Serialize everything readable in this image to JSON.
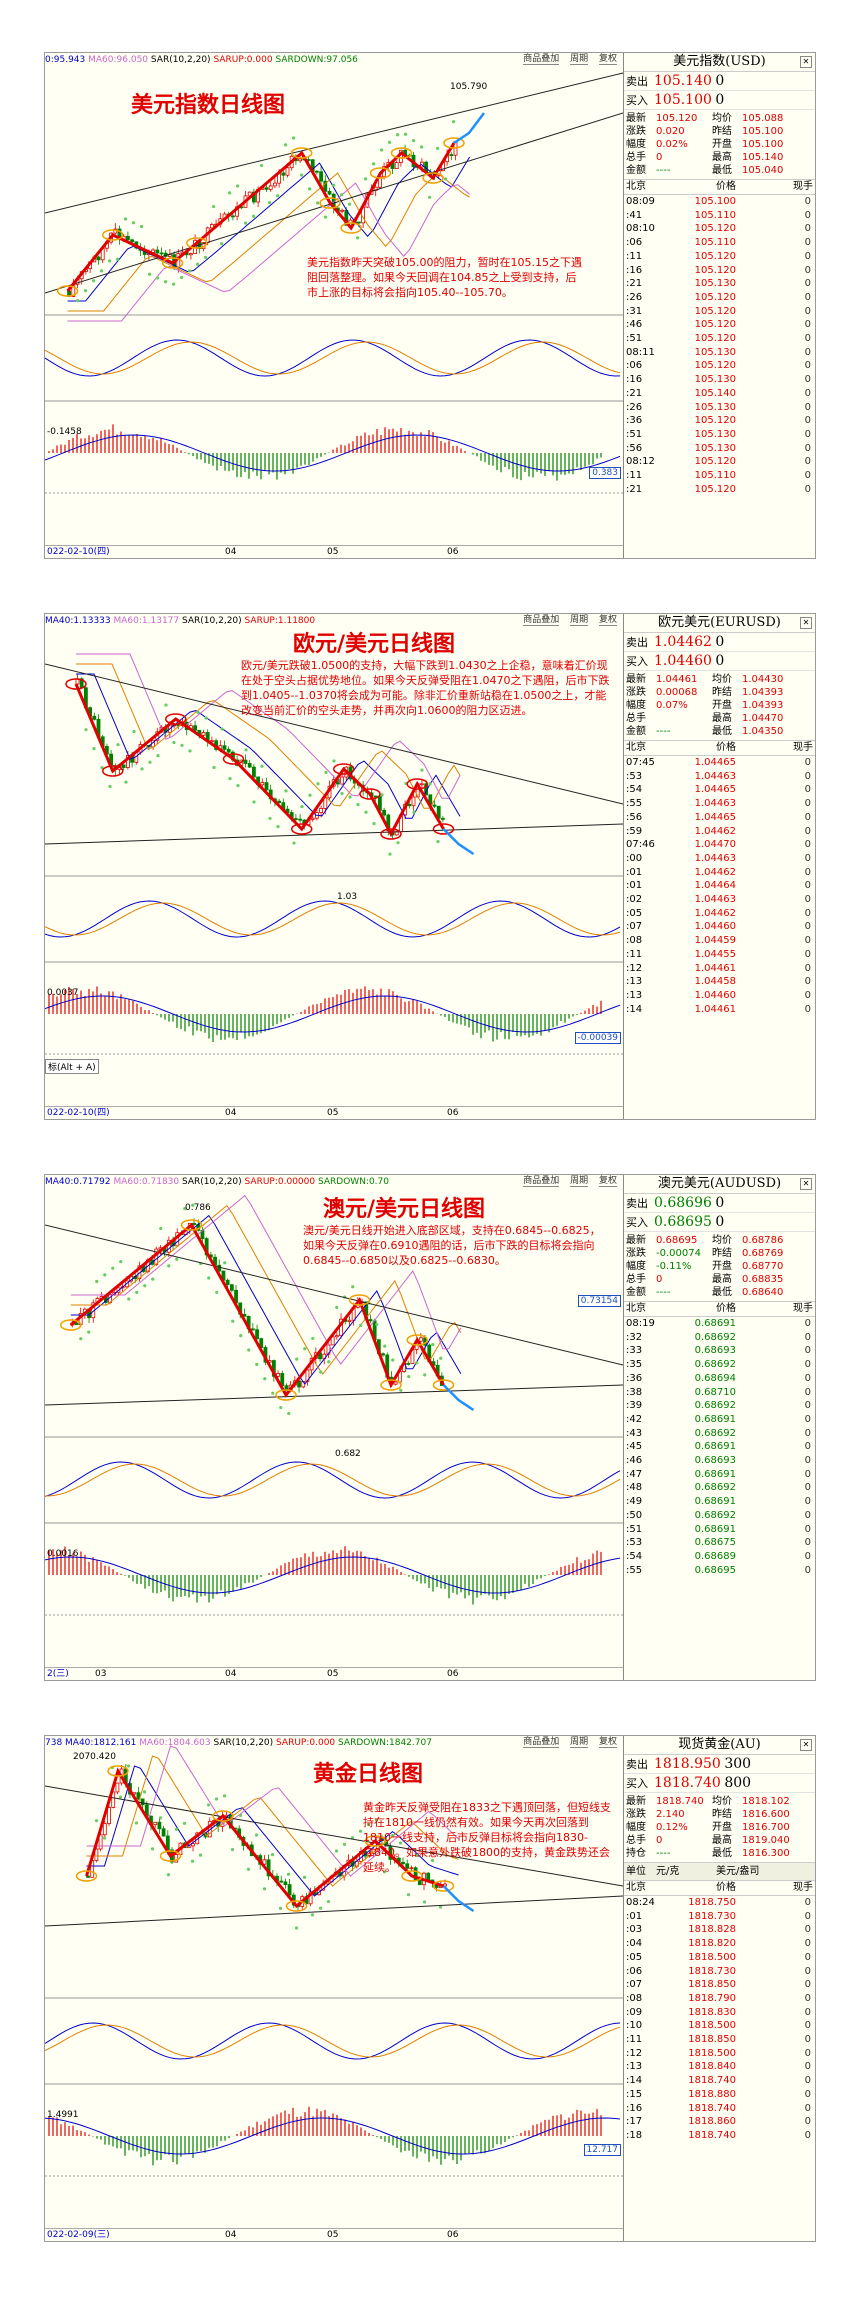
{
  "panels": [
    {
      "id": "usd",
      "chart_title": "美元指数日线图",
      "indicator_header": {
        "ma20": "0:95.943",
        "ma60": "MA60:96.050",
        "sar": "SAR(10,2,20)",
        "sarup": "SARUP:0.000",
        "sardown": "SARDOWN:97.056"
      },
      "toolbar": [
        "商品叠加",
        "周期",
        "复权"
      ],
      "note": "美元指数昨天突破105.00的阻力，暂时在105.15之下遇阻回落整理。如果今天回调在104.85之上受到支持，后市上涨的目标将会指向105.40--105.70。",
      "price_tag": "105.790",
      "macd_label": "-0.1458",
      "macd_value": "0.383",
      "date_start": "022-02-10(四)",
      "x_ticks": [
        "04",
        "05",
        "06"
      ],
      "quote": {
        "name": "美元指数(USD)",
        "sell_label": "卖出",
        "sell": "105.140",
        "sell_lot": "0",
        "buy_label": "买入",
        "buy": "105.100",
        "buy_lot": "0",
        "stats": [
          [
            "最新",
            "105.120",
            "均价",
            "105.088"
          ],
          [
            "涨跌",
            "0.020",
            "昨结",
            "105.100"
          ],
          [
            "幅度",
            "0.02%",
            "开盘",
            "105.100"
          ],
          [
            "总手",
            "0",
            "最高",
            "105.140"
          ],
          [
            "金额",
            "----",
            "最低",
            "105.040"
          ]
        ],
        "head": [
          "北京",
          "价格",
          "现手"
        ],
        "ticks": [
          [
            "08:09",
            "105.100",
            "0"
          ],
          [
            ":41",
            "105.110",
            "0"
          ],
          [
            "08:10",
            "105.120",
            "0"
          ],
          [
            ":06",
            "105.110",
            "0"
          ],
          [
            ":11",
            "105.120",
            "0"
          ],
          [
            ":16",
            "105.120",
            "0"
          ],
          [
            ":21",
            "105.130",
            "0"
          ],
          [
            ":26",
            "105.120",
            "0"
          ],
          [
            ":31",
            "105.120",
            "0"
          ],
          [
            ":46",
            "105.120",
            "0"
          ],
          [
            ":51",
            "105.120",
            "0"
          ],
          [
            "08:11",
            "105.130",
            "0"
          ],
          [
            ":06",
            "105.120",
            "0"
          ],
          [
            ":16",
            "105.130",
            "0"
          ],
          [
            ":21",
            "105.140",
            "0"
          ],
          [
            ":26",
            "105.130",
            "0"
          ],
          [
            ":36",
            "105.120",
            "0"
          ],
          [
            ":51",
            "105.130",
            "0"
          ],
          [
            ":56",
            "105.130",
            "0"
          ],
          [
            "08:12",
            "105.120",
            "0"
          ],
          [
            ":11",
            "105.110",
            "0"
          ],
          [
            ":21",
            "105.120",
            "0"
          ]
        ]
      }
    },
    {
      "id": "eur",
      "chart_title": "欧元/美元日线图",
      "indicator_header": {
        "ma20": "MA40:1.13333",
        "ma60": "MA60:1.13177",
        "sar": "SAR(10,2,20)",
        "sarup": "SARUP:1.11800",
        "sardown": ""
      },
      "toolbar": [
        "商品叠加",
        "周期",
        "复权"
      ],
      "note": "欧元/美元跌破1.0500的支持，大幅下跌到1.0430之上企稳，意味着汇价现在处于空头占据优势地位。如果今天反弹受阻在1.0470之下遇阻，后市下跌到1.0405--1.0370将会成为可能。除非汇价重新站稳在1.0500之上，才能改变当前汇价的空头走势，并再次向1.0600的阻力区迈进。",
      "price_tag": "1.03",
      "macd_label": "0.0037",
      "macd_value": "-0.00039",
      "extra_label": "标(Alt + A)",
      "date_start": "022-02-10(四)",
      "x_ticks": [
        "04",
        "05",
        "06"
      ],
      "quote": {
        "name": "欧元美元(EURUSD)",
        "sell_label": "卖出",
        "sell": "1.04462",
        "sell_lot": "0",
        "buy_label": "买入",
        "buy": "1.04460",
        "buy_lot": "0",
        "stats": [
          [
            "最新",
            "1.04461",
            "均价",
            "1.04430"
          ],
          [
            "涨跌",
            "0.00068",
            "昨结",
            "1.04393"
          ],
          [
            "幅度",
            "0.07%",
            "开盘",
            "1.04393"
          ],
          [
            "总手",
            "",
            "最高",
            "1.04470"
          ],
          [
            "金额",
            "----",
            "最低",
            "1.04350"
          ]
        ],
        "head": [
          "北京",
          "价格",
          "现手"
        ],
        "ticks": [
          [
            "07:45",
            "1.04465",
            "0"
          ],
          [
            ":53",
            "1.04463",
            "0"
          ],
          [
            ":54",
            "1.04465",
            "0"
          ],
          [
            ":55",
            "1.04463",
            "0"
          ],
          [
            ":56",
            "1.04465",
            "0"
          ],
          [
            ":59",
            "1.04462",
            "0"
          ],
          [
            "07:46",
            "1.04470",
            "0"
          ],
          [
            ":00",
            "1.04463",
            "0"
          ],
          [
            ":01",
            "1.04462",
            "0"
          ],
          [
            ":01",
            "1.04464",
            "0"
          ],
          [
            ":02",
            "1.04463",
            "0"
          ],
          [
            ":05",
            "1.04462",
            "0"
          ],
          [
            ":07",
            "1.04460",
            "0"
          ],
          [
            ":08",
            "1.04459",
            "0"
          ],
          [
            ":11",
            "1.04455",
            "0"
          ],
          [
            ":12",
            "1.04461",
            "0"
          ],
          [
            ":13",
            "1.04458",
            "0"
          ],
          [
            ":13",
            "1.04460",
            "0"
          ],
          [
            ":14",
            "1.04461",
            "0"
          ]
        ]
      }
    },
    {
      "id": "aud",
      "chart_title": "澳元/美元日线图",
      "indicator_header": {
        "ma20": "MA40:0.71792",
        "ma60": "MA60:0.71830",
        "sar": "SAR(10,2,20)",
        "sarup": "SARUP:0.00000",
        "sardown": "SARDOWN:0.70"
      },
      "toolbar": [
        "商品叠加",
        "周期",
        "复权"
      ],
      "note": "澳元/美元日线开始进入底部区域，支持在0.6845--0.6825，如果今天反弹在0.6910遇阻的话，后市下跌的目标将会指向0.6845--0.6850以及0.6825--0.6830。",
      "price_tag": "0.786",
      "price_tag2": "0.682",
      "right_value": "0.73154",
      "macd_label": "0.0016",
      "date_start": "2(三)",
      "x_ticks": [
        "03",
        "04",
        "05",
        "06"
      ],
      "quote": {
        "name": "澳元美元(AUDUSD)",
        "sell_label": "卖出",
        "sell": "0.68696",
        "sell_lot": "0",
        "buy_label": "买入",
        "buy": "0.68695",
        "buy_lot": "0",
        "stats": [
          [
            "最新",
            "0.68695",
            "均价",
            "0.68786"
          ],
          [
            "涨跌",
            "-0.00074",
            "昨结",
            "0.68769"
          ],
          [
            "幅度",
            "-0.11%",
            "开盘",
            "0.68770"
          ],
          [
            "总手",
            "0",
            "最高",
            "0.68835"
          ],
          [
            "金额",
            "----",
            "最低",
            "0.68640"
          ]
        ],
        "head": [
          "北京",
          "价格",
          "现手"
        ],
        "ticks": [
          [
            "08:19",
            "0.68691",
            "0"
          ],
          [
            ":32",
            "0.68692",
            "0"
          ],
          [
            ":33",
            "0.68693",
            "0"
          ],
          [
            ":35",
            "0.68692",
            "0"
          ],
          [
            ":36",
            "0.68694",
            "0"
          ],
          [
            ":38",
            "0.68710",
            "0"
          ],
          [
            ":39",
            "0.68692",
            "0"
          ],
          [
            ":42",
            "0.68691",
            "0"
          ],
          [
            ":43",
            "0.68692",
            "0"
          ],
          [
            ":45",
            "0.68691",
            "0"
          ],
          [
            ":46",
            "0.68693",
            "0"
          ],
          [
            ":47",
            "0.68691",
            "0"
          ],
          [
            ":48",
            "0.68692",
            "0"
          ],
          [
            ":49",
            "0.68691",
            "0"
          ],
          [
            ":50",
            "0.68692",
            "0"
          ],
          [
            ":51",
            "0.68691",
            "0"
          ],
          [
            ":53",
            "0.68675",
            "0"
          ],
          [
            ":54",
            "0.68689",
            "0"
          ],
          [
            ":55",
            "0.68695",
            "0"
          ]
        ]
      }
    },
    {
      "id": "gold",
      "chart_title": "黄金日线图",
      "indicator_header": {
        "ma20": "738 MA40:1812.161",
        "ma60": "MA60:1804.603",
        "sar": "SAR(10,2,20)",
        "sarup": "SARUP:0.000",
        "sardown": "SARDOWN:1842.707"
      },
      "toolbar": [
        "商品叠加",
        "周期",
        "复权"
      ],
      "note": "黄金昨天反弹受阻在1833之下遇顶回落，但短线支持在1810一线仍然有效。如果今天再次回落到1810一线支持，后市反弹目标将会指向1830--1840。如果意外跌破1800的支持，黄金跌势还会延续。",
      "price_tag": "2070.420",
      "macd_label": "1.4991",
      "macd_value": "12.717",
      "date_start": "022-02-09(三)",
      "x_ticks": [
        "04",
        "05",
        "06"
      ],
      "quote": {
        "name": "现货黄金(AU)",
        "sell_label": "卖出",
        "sell": "1818.950",
        "sell_lot": "300",
        "buy_label": "买入",
        "buy": "1818.740",
        "buy_lot": "800",
        "stats": [
          [
            "最新",
            "1818.740",
            "均价",
            "1818.102"
          ],
          [
            "涨跌",
            "2.140",
            "昨结",
            "1816.600"
          ],
          [
            "幅度",
            "0.12%",
            "开盘",
            "1816.700"
          ],
          [
            "总手",
            "0",
            "最高",
            "1819.040"
          ],
          [
            "持仓",
            "----",
            "最低",
            "1816.300"
          ]
        ],
        "unit_row": [
          "单位",
          "元/克",
          "美元/盎司"
        ],
        "head": [
          "北京",
          "价格",
          "现手"
        ],
        "ticks": [
          [
            "08:24",
            "1818.750",
            "0"
          ],
          [
            ":01",
            "1818.730",
            "0"
          ],
          [
            ":03",
            "1818.828",
            "0"
          ],
          [
            ":04",
            "1818.820",
            "0"
          ],
          [
            ":05",
            "1818.500",
            "0"
          ],
          [
            ":06",
            "1818.730",
            "0"
          ],
          [
            ":07",
            "1818.850",
            "0"
          ],
          [
            ":08",
            "1818.790",
            "0"
          ],
          [
            ":09",
            "1818.830",
            "0"
          ],
          [
            ":10",
            "1818.500",
            "0"
          ],
          [
            ":11",
            "1818.850",
            "0"
          ],
          [
            ":12",
            "1818.500",
            "0"
          ],
          [
            ":13",
            "1818.840",
            "0"
          ],
          [
            ":14",
            "1818.740",
            "0"
          ],
          [
            ":15",
            "1818.880",
            "0"
          ],
          [
            ":16",
            "1818.740",
            "0"
          ],
          [
            ":17",
            "1818.860",
            "0"
          ],
          [
            ":18",
            "1818.740",
            "0"
          ]
        ]
      }
    }
  ],
  "colors": {
    "up": "#e00000",
    "down": "#008000",
    "zigzag": "#e00000",
    "arrow": "#1e90ff",
    "circle": "#f0a000",
    "ma1": "#0000cc",
    "ma2": "#e08000",
    "ma3": "#cc66cc",
    "sar": "#66cc66"
  },
  "chart_data": [
    {
      "type": "line",
      "title": "美元指数日线图",
      "labels": [
        "105.790",
        "-0.1458",
        "0.383"
      ],
      "x_ticks": [
        "04",
        "05",
        "06"
      ]
    },
    {
      "type": "line",
      "title": "欧元/美元日线图",
      "labels": [
        "1.03",
        "0.0037",
        "-0.00039"
      ],
      "x_ticks": [
        "04",
        "05",
        "06"
      ]
    },
    {
      "type": "line",
      "title": "澳元/美元日线图",
      "labels": [
        "0.786",
        "0.682",
        "0.73154",
        "0.0016"
      ],
      "x_ticks": [
        "03",
        "04",
        "05",
        "06"
      ]
    },
    {
      "type": "line",
      "title": "黄金日线图",
      "labels": [
        "2070.420",
        "1.4991",
        "12.717"
      ],
      "x_ticks": [
        "04",
        "05",
        "06"
      ]
    }
  ]
}
